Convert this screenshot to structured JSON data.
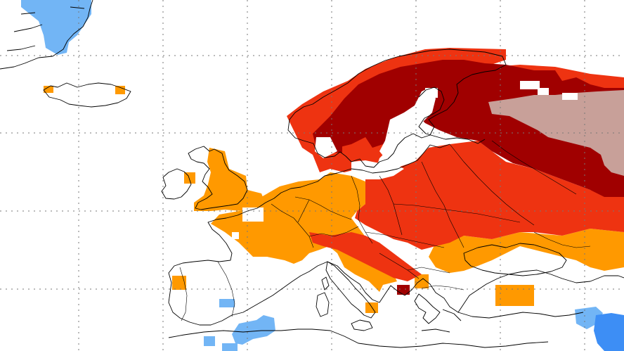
{
  "map": {
    "type": "gridded-anomaly-map",
    "region": "Europe",
    "grid_lines": "dotted",
    "coastlines": true,
    "borders": true
  },
  "palette": {
    "dark_red": "#a00000",
    "red": "#ee3311",
    "orange": "#ff9900",
    "pinkish_gray": "#c8a099",
    "light_blue": "#72b5f5",
    "blue": "#3d8ef5"
  }
}
